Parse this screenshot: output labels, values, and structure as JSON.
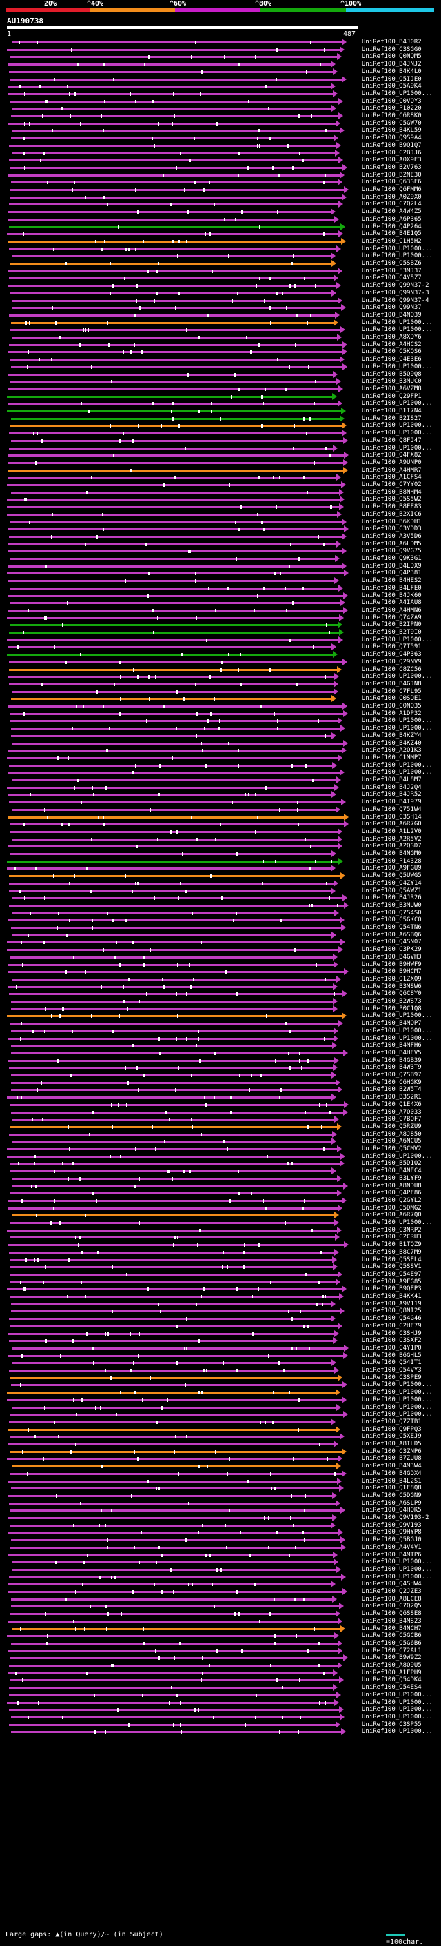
{
  "identity_scale": {
    "labels": [
      "20%",
      "^40%",
      "^60%",
      "^80%",
      "^100%"
    ],
    "colors": [
      "#e11d2a",
      "#f28c1b",
      "#c81ec8",
      "#14a80d",
      "#1ec7e6"
    ]
  },
  "query": {
    "title": "AU190738",
    "start": "1",
    "end": "487"
  },
  "hits": [
    {
      "id": "UniRef100_B4J0R2",
      "color": "#c13ec1"
    },
    {
      "id": "UniRef100_C3SGG0",
      "color": "#c13ec1"
    },
    {
      "id": "UniRef100_Q0NQM5",
      "color": "#c13ec1"
    },
    {
      "id": "UniRef100_B4JNJ2",
      "color": "#c13ec1"
    },
    {
      "id": "UniRef100_B4K4L0",
      "color": "#c13ec1"
    },
    {
      "id": "UniRef100_Q5IJE0",
      "color": "#c13ec1"
    },
    {
      "id": "UniRef100_Q5A9K4",
      "color": "#c13ec1"
    },
    {
      "id": "UniRef100_UP1000...",
      "color": "#c13ec1"
    },
    {
      "id": "UniRef100_C0VQY3",
      "color": "#c13ec1"
    },
    {
      "id": "UniRef100_P10220",
      "color": "#c13ec1"
    },
    {
      "id": "UniRef100_C6R8K0",
      "color": "#c13ec1"
    },
    {
      "id": "UniRef100_C5GW70",
      "color": "#c13ec1"
    },
    {
      "id": "UniRef100_B4KL59",
      "color": "#c13ec1"
    },
    {
      "id": "UniRef100_Q9S9A4",
      "color": "#c13ec1"
    },
    {
      "id": "UniRef100_B9Q1Q7",
      "color": "#c13ec1"
    },
    {
      "id": "UniRef100_C2BJJ6",
      "color": "#c13ec1"
    },
    {
      "id": "UniRef100_A0X9E3",
      "color": "#c13ec1"
    },
    {
      "id": "UniRef100_B2V763",
      "color": "#c13ec1"
    },
    {
      "id": "UniRef100_B2NE30",
      "color": "#c13ec1"
    },
    {
      "id": "UniRef100_Q63SE6",
      "color": "#c13ec1"
    },
    {
      "id": "UniRef100_Q6FMM6",
      "color": "#c13ec1"
    },
    {
      "id": "UniRef100_A0Z9X0",
      "color": "#c13ec1"
    },
    {
      "id": "UniRef100_C7Q2L4",
      "color": "#c13ec1"
    },
    {
      "id": "UniRef100_A4W4Z5",
      "color": "#c13ec1"
    },
    {
      "id": "UniRef100_A6P365",
      "color": "#c13ec1"
    },
    {
      "id": "UniRef100_Q4P264",
      "color": "#14a80d"
    },
    {
      "id": "UniRef100_B4E1Q5",
      "color": "#c13ec1"
    },
    {
      "id": "UniRef100_C1H5H2",
      "color": "#f28c1b"
    },
    {
      "id": "UniRef100_UP1000...",
      "color": "#c13ec1"
    },
    {
      "id": "UniRef100_UP1000...",
      "color": "#c13ec1"
    },
    {
      "id": "UniRef100_Q5SBZ6",
      "color": "#f28c1b"
    },
    {
      "id": "UniRef100_E3MJ37",
      "color": "#c13ec1"
    },
    {
      "id": "UniRef100_C4Y5Z7",
      "color": "#c13ec1"
    },
    {
      "id": "UniRef100_Q99N37-2",
      "color": "#c13ec1"
    },
    {
      "id": "UniRef100_Q99N37-3",
      "color": "#c13ec1"
    },
    {
      "id": "UniRef100_Q99N37-4",
      "color": "#c13ec1"
    },
    {
      "id": "UniRef100_Q99N37",
      "color": "#c13ec1"
    },
    {
      "id": "UniRef100_B4NQ39",
      "color": "#c13ec1"
    },
    {
      "id": "UniRef100_UP1000...",
      "color": "#f28c1b"
    },
    {
      "id": "UniRef100_UP1000...",
      "color": "#c13ec1"
    },
    {
      "id": "UniRef100_A8XDY6",
      "color": "#c13ec1"
    },
    {
      "id": "UniRef100_A4HCS2",
      "color": "#c13ec1"
    },
    {
      "id": "UniRef100_C5KQS6",
      "color": "#c13ec1"
    },
    {
      "id": "UniRef100_C4E3E6",
      "color": "#c13ec1"
    },
    {
      "id": "UniRef100_UP1000...",
      "color": "#c13ec1"
    },
    {
      "id": "UniRef100_B5Q9Q8",
      "color": "#c13ec1"
    },
    {
      "id": "UniRef100_B3MUC0",
      "color": "#c13ec1"
    },
    {
      "id": "UniRef100_A6VZM8",
      "color": "#c13ec1"
    },
    {
      "id": "UniRef100_Q29FP1",
      "color": "#14a80d"
    },
    {
      "id": "UniRef100_UP1000...",
      "color": "#c13ec1"
    },
    {
      "id": "UniRef100_B1I7N4",
      "color": "#14a80d"
    },
    {
      "id": "UniRef100_B2IS27",
      "color": "#14a80d"
    },
    {
      "id": "UniRef100_UP1000...",
      "color": "#f28c1b"
    },
    {
      "id": "UniRef100_UP1000...",
      "color": "#c13ec1"
    },
    {
      "id": "UniRef100_Q8FJ47",
      "color": "#c13ec1"
    },
    {
      "id": "UniRef100_UP1000...",
      "color": "#c13ec1"
    },
    {
      "id": "UniRef100_Q4FX82",
      "color": "#c13ec1"
    },
    {
      "id": "UniRef100_A9UNP0",
      "color": "#c13ec1"
    },
    {
      "id": "UniRef100_A4HMR7",
      "color": "#f28c1b"
    },
    {
      "id": "UniRef100_A1CFS4",
      "color": "#c13ec1"
    },
    {
      "id": "UniRef100_C7YY02",
      "color": "#c13ec1"
    },
    {
      "id": "UniRef100_B8NHM4",
      "color": "#c13ec1"
    },
    {
      "id": "UniRef100_Q5S5W2",
      "color": "#c13ec1"
    },
    {
      "id": "UniRef100_B8EE83",
      "color": "#c13ec1"
    },
    {
      "id": "UniRef100_B2XIC6",
      "color": "#c13ec1"
    },
    {
      "id": "UniRef100_B6KDH1",
      "color": "#c13ec1"
    },
    {
      "id": "UniRef100_C3YDD3",
      "color": "#c13ec1"
    },
    {
      "id": "UniRef100_A3V5D6",
      "color": "#c13ec1"
    },
    {
      "id": "UniRef100_A6LDM5",
      "color": "#c13ec1"
    },
    {
      "id": "UniRef100_Q9VG75",
      "color": "#c13ec1"
    },
    {
      "id": "UniRef100_Q9K3G1",
      "color": "#c13ec1"
    },
    {
      "id": "UniRef100_B4LDX9",
      "color": "#c13ec1"
    },
    {
      "id": "UniRef100_Q4P381",
      "color": "#c13ec1"
    },
    {
      "id": "UniRef100_B4HES2",
      "color": "#c13ec1"
    },
    {
      "id": "UniRef100_B4LFE0",
      "color": "#c13ec1"
    },
    {
      "id": "UniRef100_B4JK60",
      "color": "#c13ec1"
    },
    {
      "id": "UniRef100_A4IAU8",
      "color": "#c13ec1"
    },
    {
      "id": "UniRef100_A4HMN6",
      "color": "#c13ec1"
    },
    {
      "id": "UniRef100_Q74ZA9",
      "color": "#c13ec1"
    },
    {
      "id": "UniRef100_B2IPN0",
      "color": "#14a80d"
    },
    {
      "id": "UniRef100_B2T9I0",
      "color": "#14a80d"
    },
    {
      "id": "UniRef100_UP1000...",
      "color": "#c13ec1"
    },
    {
      "id": "UniRef100_Q7T591",
      "color": "#c13ec1"
    },
    {
      "id": "UniRef100_Q4P363",
      "color": "#14a80d"
    },
    {
      "id": "UniRef100_Q29NV9",
      "color": "#c13ec1"
    },
    {
      "id": "UniRef100_C8ZC56",
      "color": "#f28c1b"
    },
    {
      "id": "UniRef100_UP1000...",
      "color": "#c13ec1"
    },
    {
      "id": "UniRef100_B4GJN8",
      "color": "#c13ec1"
    },
    {
      "id": "UniRef100_C7FL95",
      "color": "#c13ec1"
    },
    {
      "id": "UniRef100_C0SDE1",
      "color": "#f28c1b"
    },
    {
      "id": "UniRef100_C0NQ35",
      "color": "#c13ec1"
    },
    {
      "id": "UniRef100_A1DP32",
      "color": "#c13ec1"
    },
    {
      "id": "UniRef100_UP1000...",
      "color": "#c13ec1"
    },
    {
      "id": "UniRef100_UP1000...",
      "color": "#c13ec1"
    },
    {
      "id": "UniRef100_B4KZY4",
      "color": "#c13ec1"
    },
    {
      "id": "UniRef100_B4KZ40",
      "color": "#c13ec1"
    },
    {
      "id": "UniRef100_A2Q1K3",
      "color": "#c13ec1"
    },
    {
      "id": "UniRef100_C1MMP7",
      "color": "#c13ec1"
    },
    {
      "id": "UniRef100_UP1000...",
      "color": "#c13ec1"
    },
    {
      "id": "UniRef100_UP1000...",
      "color": "#c13ec1"
    },
    {
      "id": "UniRef100_B4L8M7",
      "color": "#c13ec1"
    },
    {
      "id": "UniRef100_B4J2Q4",
      "color": "#c13ec1"
    },
    {
      "id": "UniRef100_B4JR52",
      "color": "#c13ec1"
    },
    {
      "id": "UniRef100_B4I979",
      "color": "#c13ec1"
    },
    {
      "id": "UniRef100_Q751W4",
      "color": "#c13ec1"
    },
    {
      "id": "UniRef100_C3SH14",
      "color": "#f28c1b"
    },
    {
      "id": "UniRef100_A6R7G0",
      "color": "#c13ec1"
    },
    {
      "id": "UniRef100_A1L2V0",
      "color": "#c13ec1"
    },
    {
      "id": "UniRef100_A2R5V2",
      "color": "#c13ec1"
    },
    {
      "id": "UniRef100_A2QSD7",
      "color": "#c13ec1"
    },
    {
      "id": "UniRef100_B4NGM0",
      "color": "#c13ec1"
    },
    {
      "id": "UniRef100_P14328",
      "color": "#14a80d"
    },
    {
      "id": "UniRef100_A9FGU9",
      "color": "#c13ec1"
    },
    {
      "id": "UniRef100_Q5UWG5",
      "color": "#f28c1b"
    },
    {
      "id": "UniRef100_Q4ZY14",
      "color": "#c13ec1"
    },
    {
      "id": "UniRef100_Q5AWZ1",
      "color": "#c13ec1"
    },
    {
      "id": "UniRef100_B4JR26",
      "color": "#c13ec1"
    },
    {
      "id": "UniRef100_B3MUW0",
      "color": "#c13ec1"
    },
    {
      "id": "UniRef100_Q7S4S0",
      "color": "#c13ec1"
    },
    {
      "id": "UniRef100_C5GKC0",
      "color": "#c13ec1"
    },
    {
      "id": "UniRef100_Q54TN6",
      "color": "#c13ec1"
    },
    {
      "id": "UniRef100_A6SBQ6",
      "color": "#c13ec1"
    },
    {
      "id": "UniRef100_Q4SN07",
      "color": "#c13ec1"
    },
    {
      "id": "UniRef100_C3PK29",
      "color": "#c13ec1"
    },
    {
      "id": "UniRef100_B4GVH3",
      "color": "#c13ec1"
    },
    {
      "id": "UniRef100_B9HWF9",
      "color": "#c13ec1"
    },
    {
      "id": "UniRef100_B9HCM7",
      "color": "#c13ec1"
    },
    {
      "id": "UniRef100_Q1ZXQ9",
      "color": "#c13ec1"
    },
    {
      "id": "UniRef100_B3MSW6",
      "color": "#c13ec1"
    },
    {
      "id": "UniRef100_Q6C8Y0",
      "color": "#c13ec1"
    },
    {
      "id": "UniRef100_B2WS73",
      "color": "#c13ec1"
    },
    {
      "id": "UniRef100_P0C1Q8",
      "color": "#c13ec1"
    },
    {
      "id": "UniRef100_UP1000...",
      "color": "#f28c1b"
    },
    {
      "id": "UniRef100_B4MQP7",
      "color": "#c13ec1"
    },
    {
      "id": "UniRef100_UP1000...",
      "color": "#c13ec1"
    },
    {
      "id": "UniRef100_UP1000...",
      "color": "#c13ec1"
    },
    {
      "id": "UniRef100_B4MFH6",
      "color": "#c13ec1"
    },
    {
      "id": "UniRef100_B4HEV5",
      "color": "#c13ec1"
    },
    {
      "id": "UniRef100_B4GB39",
      "color": "#c13ec1"
    },
    {
      "id": "UniRef100_B4W3T9",
      "color": "#c13ec1"
    },
    {
      "id": "UniRef100_Q7SB97",
      "color": "#c13ec1"
    },
    {
      "id": "UniRef100_C6HGK9",
      "color": "#c13ec1"
    },
    {
      "id": "UniRef100_B2W5T4",
      "color": "#c13ec1"
    },
    {
      "id": "UniRef100_B3S2R1",
      "color": "#c13ec1"
    },
    {
      "id": "UniRef100_Q1E4X6",
      "color": "#c13ec1"
    },
    {
      "id": "UniRef100_A7Q033",
      "color": "#c13ec1"
    },
    {
      "id": "UniRef100_C7BQF7",
      "color": "#c13ec1"
    },
    {
      "id": "UniRef100_Q5RZU9",
      "color": "#f28c1b"
    },
    {
      "id": "UniRef100_A8J850",
      "color": "#c13ec1"
    },
    {
      "id": "UniRef100_A6NCU5",
      "color": "#c13ec1"
    },
    {
      "id": "UniRef100_Q5CMV2",
      "color": "#c13ec1"
    },
    {
      "id": "UniRef100_UP1000...",
      "color": "#c13ec1"
    },
    {
      "id": "UniRef100_B5D1Q2",
      "color": "#c13ec1"
    },
    {
      "id": "UniRef100_B4NEC4",
      "color": "#c13ec1"
    },
    {
      "id": "UniRef100_B3LYF9",
      "color": "#c13ec1"
    },
    {
      "id": "UniRef100_A8NDU8",
      "color": "#c13ec1"
    },
    {
      "id": "UniRef100_Q4PF86",
      "color": "#c13ec1"
    },
    {
      "id": "UniRef100_Q2GYL2",
      "color": "#c13ec1"
    },
    {
      "id": "UniRef100_C5DMG2",
      "color": "#c13ec1"
    },
    {
      "id": "UniRef100_A6R7Q0",
      "color": "#f28c1b"
    },
    {
      "id": "UniRef100_UP1000...",
      "color": "#c13ec1"
    },
    {
      "id": "UniRef100_C3NRP2",
      "color": "#c13ec1"
    },
    {
      "id": "UniRef100_C2CRU3",
      "color": "#c13ec1"
    },
    {
      "id": "UniRef100_B1TQZ9",
      "color": "#c13ec1"
    },
    {
      "id": "UniRef100_B8C7M9",
      "color": "#c13ec1"
    },
    {
      "id": "UniRef100_Q5SEL4",
      "color": "#c13ec1"
    },
    {
      "id": "UniRef100_Q5SSV1",
      "color": "#c13ec1"
    },
    {
      "id": "UniRef100_Q54E97",
      "color": "#c13ec1"
    },
    {
      "id": "UniRef100_A9FG85",
      "color": "#c13ec1"
    },
    {
      "id": "UniRef100_B9QEP3",
      "color": "#c13ec1"
    },
    {
      "id": "UniRef100_B4KK41",
      "color": "#c13ec1"
    },
    {
      "id": "UniRef100_A9V119",
      "color": "#c13ec1"
    },
    {
      "id": "UniRef100_Q8NI25",
      "color": "#c13ec1"
    },
    {
      "id": "UniRef100_Q54G46",
      "color": "#c13ec1"
    },
    {
      "id": "UniRef100_C2HE79",
      "color": "#c13ec1"
    },
    {
      "id": "UniRef100_C3SHJ9",
      "color": "#c13ec1"
    },
    {
      "id": "UniRef100_C3SXF2",
      "color": "#c13ec1"
    },
    {
      "id": "UniRef100_C4Y1P0",
      "color": "#c13ec1"
    },
    {
      "id": "UniRef100_B6GHL5",
      "color": "#c13ec1"
    },
    {
      "id": "UniRef100_Q54IT1",
      "color": "#c13ec1"
    },
    {
      "id": "UniRef100_Q54VY3",
      "color": "#c13ec1"
    },
    {
      "id": "UniRef100_C3SPE9",
      "color": "#f28c1b"
    },
    {
      "id": "UniRef100_UP1000...",
      "color": "#c13ec1"
    },
    {
      "id": "UniRef100_UP1000...",
      "color": "#f28c1b"
    },
    {
      "id": "UniRef100_UP1000...",
      "color": "#c13ec1"
    },
    {
      "id": "UniRef100_UP1000...",
      "color": "#c13ec1"
    },
    {
      "id": "UniRef100_UP1000...",
      "color": "#c13ec1"
    },
    {
      "id": "UniRef100_Q7ZTB1",
      "color": "#c13ec1"
    },
    {
      "id": "UniRef100_Q9FPQ3",
      "color": "#f28c1b"
    },
    {
      "id": "UniRef100_C5XEJ9",
      "color": "#c13ec1"
    },
    {
      "id": "UniRef100_A8ILD5",
      "color": "#c13ec1"
    },
    {
      "id": "UniRef100_C3ZNP6",
      "color": "#f28c1b"
    },
    {
      "id": "UniRef100_B7ZUU8",
      "color": "#c13ec1"
    },
    {
      "id": "UniRef100_B4M3W4",
      "color": "#f28c1b"
    },
    {
      "id": "UniRef100_B4GDX4",
      "color": "#c13ec1"
    },
    {
      "id": "UniRef100_B4L2S1",
      "color": "#c13ec1"
    },
    {
      "id": "UniRef100_Q1E8Q8",
      "color": "#c13ec1"
    },
    {
      "id": "UniRef100_C5DGN9",
      "color": "#c13ec1"
    },
    {
      "id": "UniRef100_A6SLP9",
      "color": "#c13ec1"
    },
    {
      "id": "UniRef100_Q4HQK5",
      "color": "#c13ec1"
    },
    {
      "id": "UniRef100_Q9V193-2",
      "color": "#c13ec1"
    },
    {
      "id": "UniRef100_Q9V193",
      "color": "#c13ec1"
    },
    {
      "id": "UniRef100_Q9HYP8",
      "color": "#c13ec1"
    },
    {
      "id": "UniRef100_Q5BGJ0",
      "color": "#c13ec1"
    },
    {
      "id": "UniRef100_A4V4V1",
      "color": "#c13ec1"
    },
    {
      "id": "UniRef100_B4MTP6",
      "color": "#c13ec1"
    },
    {
      "id": "UniRef100_UP1000...",
      "color": "#c13ec1"
    },
    {
      "id": "UniRef100_UP1000...",
      "color": "#c13ec1"
    },
    {
      "id": "UniRef100_UP1000...",
      "color": "#c13ec1"
    },
    {
      "id": "UniRef100_Q4SHW4",
      "color": "#c13ec1"
    },
    {
      "id": "UniRef100_Q2JZE3",
      "color": "#c13ec1"
    },
    {
      "id": "UniRef100_A8LCE8",
      "color": "#c13ec1"
    },
    {
      "id": "UniRef100_C7Q2Q5",
      "color": "#c13ec1"
    },
    {
      "id": "UniRef100_Q6SSE8",
      "color": "#c13ec1"
    },
    {
      "id": "UniRef100_B4MS23",
      "color": "#c13ec1"
    },
    {
      "id": "UniRef100_B4NCH7",
      "color": "#f28c1b"
    },
    {
      "id": "UniRef100_C5GCB6",
      "color": "#c13ec1"
    },
    {
      "id": "UniRef100_Q5G6B6",
      "color": "#c13ec1"
    },
    {
      "id": "UniRef100_C72AL1",
      "color": "#c13ec1"
    },
    {
      "id": "UniRef100_B9W9Z2",
      "color": "#c13ec1"
    },
    {
      "id": "UniRef100_A8Q9U5",
      "color": "#c13ec1"
    },
    {
      "id": "UniRef100_A1FPH9",
      "color": "#c13ec1"
    },
    {
      "id": "UniRef100_Q54DK4",
      "color": "#c13ec1"
    },
    {
      "id": "UniRef100_Q54ES4",
      "color": "#c13ec1"
    },
    {
      "id": "UniRef100_UP1000...",
      "color": "#c13ec1"
    },
    {
      "id": "UniRef100_UP1000...",
      "color": "#c13ec1"
    },
    {
      "id": "UniRef100_UP1000...",
      "color": "#c13ec1"
    },
    {
      "id": "UniRef100_UP1000...",
      "color": "#c13ec1"
    },
    {
      "id": "UniRef100_C3SP55",
      "color": "#c13ec1"
    },
    {
      "id": "UniRef100_UP1000...",
      "color": "#c13ec1"
    }
  ],
  "legend": {
    "large_gaps": "Large gaps: ▲(in Query)/~ (in Subject)",
    "scale": "=100char."
  }
}
